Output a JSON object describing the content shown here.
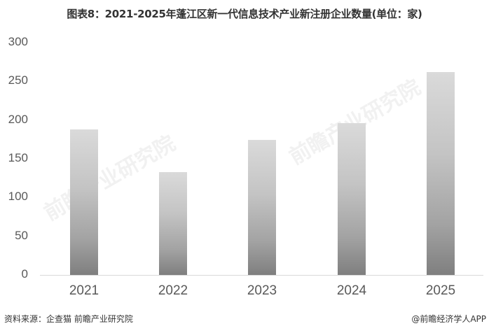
{
  "title": "图表8：2021-2025年蓬江区新一代信息技术产业新注册企业数量(单位：家)",
  "footer": {
    "source": "资料来源：企查猫 前瞻产业研究院",
    "credit": "@前瞻经济学人APP"
  },
  "watermark": "前瞻产业研究院",
  "yticks": [
    "300",
    "250",
    "200",
    "150",
    "100",
    "50",
    "0"
  ],
  "chart_data": {
    "type": "bar",
    "title": "图表8：2021-2025年蓬江区新一代信息技术产业新注册企业数量(单位：家)",
    "categories": [
      "2021",
      "2022",
      "2023",
      "2024",
      "2025"
    ],
    "values": [
      188,
      133,
      174,
      196,
      262
    ],
    "xlabel": "",
    "ylabel": "单位：家",
    "ylim": [
      0,
      300
    ],
    "yticks": [
      0,
      50,
      100,
      150,
      200,
      250,
      300
    ],
    "grid": false,
    "legend": null,
    "bar_color": "gradient #dadada→#7f7f7f"
  }
}
